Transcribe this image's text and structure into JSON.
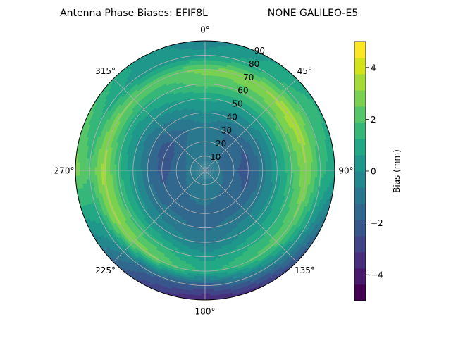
{
  "chart_data": {
    "type": "heatmap",
    "projection": "polar",
    "title": "Antenna Phase Biases: EFIF8L",
    "subtitle": "NONE GALILEO-E5",
    "theta_zero": "top",
    "theta_direction": "clockwise",
    "angle_ticks": [
      "0°",
      "45°",
      "90°",
      "135°",
      "180°",
      "225°",
      "270°",
      "315°"
    ],
    "angle_values": [
      0,
      45,
      90,
      135,
      180,
      225,
      270,
      315
    ],
    "radial_ticks": [
      "10",
      "20",
      "30",
      "40",
      "50",
      "60",
      "70",
      "80",
      "90"
    ],
    "radial_values": [
      10,
      20,
      30,
      40,
      50,
      60,
      70,
      80,
      90
    ],
    "rlim": [
      0,
      90
    ],
    "grid": true,
    "colorbar": {
      "label": "Bias (mm)",
      "ticks": [
        "−4",
        "−2",
        "0",
        "2",
        "4"
      ],
      "tick_values": [
        -4,
        -2,
        0,
        2,
        4
      ],
      "range": [
        -5,
        5
      ],
      "levels": [
        -5,
        -4.5,
        -4,
        -3.5,
        -3,
        -2.5,
        -2,
        -1.5,
        -1,
        -0.5,
        0,
        0.5,
        1,
        1.5,
        2,
        2.5,
        3,
        3.5,
        4,
        4.5,
        5
      ],
      "colors": [
        "#440154",
        "#481a6c",
        "#472f7d",
        "#414487",
        "#39568c",
        "#31688e",
        "#2a788e",
        "#23888e",
        "#1f988b",
        "#22a884",
        "#35b779",
        "#54c568",
        "#7ad151",
        "#a5db36",
        "#d2e21b",
        "#fde725"
      ]
    },
    "series": [
      {
        "elevation": [
          0,
          10,
          20,
          30,
          40,
          50,
          60,
          70,
          80,
          90
        ],
        "azimuth": [
          0,
          30,
          60,
          90,
          120,
          150,
          180,
          210,
          240,
          270,
          300,
          330
        ],
        "bias_mm": [
          [
            -1.3,
            -1.3,
            -1.3,
            -1.3,
            -1.3,
            -1.3,
            -1.3,
            -1.3,
            -1.3,
            -1.3,
            -1.3,
            -1.3
          ],
          [
            -0.8,
            -1.0,
            -1.2,
            -1.2,
            -1.0,
            -0.8,
            -0.7,
            -0.8,
            -1.0,
            -1.1,
            -1.0,
            -0.9
          ],
          [
            -0.9,
            -1.2,
            -1.6,
            -1.8,
            -1.6,
            -1.3,
            -1.1,
            -1.2,
            -1.5,
            -1.7,
            -1.5,
            -1.1
          ],
          [
            -0.8,
            -1.3,
            -1.9,
            -2.1,
            -1.9,
            -1.6,
            -1.4,
            -1.5,
            -1.8,
            -2.1,
            -2.3,
            -1.4
          ],
          [
            0.0,
            -0.5,
            -0.8,
            -1.0,
            -0.9,
            -1.0,
            -1.4,
            -1.1,
            -1.0,
            -1.2,
            -1.4,
            -0.7
          ],
          [
            0.8,
            0.6,
            0.5,
            0.4,
            0.3,
            -0.1,
            -0.9,
            -0.2,
            0.2,
            0.2,
            -0.2,
            0.3
          ],
          [
            2.2,
            2.0,
            2.3,
            1.8,
            1.3,
            1.1,
            0.3,
            1.4,
            1.8,
            1.5,
            1.0,
            1.2
          ],
          [
            2.7,
            3.0,
            3.6,
            3.1,
            2.5,
            2.0,
            1.1,
            2.6,
            3.2,
            3.4,
            2.8,
            2.2
          ],
          [
            0.3,
            1.0,
            1.8,
            1.6,
            0.4,
            -0.8,
            -2.0,
            -1.6,
            0.6,
            1.9,
            1.1,
            0.2
          ],
          [
            -0.5,
            0.5,
            1.2,
            0.8,
            -1.6,
            -3.2,
            -3.9,
            -2.8,
            -0.2,
            2.8,
            2.0,
            0.4
          ]
        ]
      }
    ]
  }
}
